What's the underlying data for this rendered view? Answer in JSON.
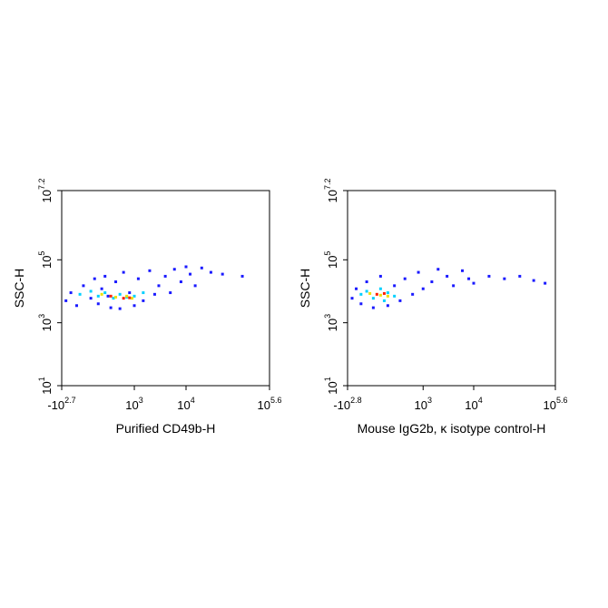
{
  "chart_data": [
    {
      "type": "scatter",
      "xlabel": "Purified CD49b-H",
      "ylabel": "SSC-H",
      "xscale": "biexponential",
      "yscale": "log",
      "xlim": [
        -501,
        398107
      ],
      "ylim": [
        10,
        15848932
      ],
      "xticks": [
        {
          "value": -501,
          "label": "-10",
          "exponent": "2.7"
        },
        {
          "value": 1000,
          "label": "10",
          "exponent": "3"
        },
        {
          "value": 10000,
          "label": "10",
          "exponent": "4"
        },
        {
          "value": 398107,
          "label": "10",
          "exponent": "5.6"
        }
      ],
      "yticks": [
        {
          "value": 10,
          "label": "10",
          "exponent": "1"
        },
        {
          "value": 1000,
          "label": "10",
          "exponent": "3"
        },
        {
          "value": 100000,
          "label": "10",
          "exponent": "5"
        },
        {
          "value": 15848932,
          "label": "10",
          "exponent": "7.2"
        }
      ],
      "series": [
        {
          "color": "#1a1aff",
          "x": [
            -400,
            -300,
            -200,
            -100,
            0,
            50,
            100,
            150,
            200,
            250,
            300,
            400,
            500,
            600,
            800,
            1000,
            1200,
            1500,
            2000,
            2500,
            3000,
            4000,
            5000,
            6000,
            8000,
            10000,
            12000,
            15000,
            20000,
            30000,
            50000,
            120000
          ],
          "y": [
            5000,
            9000,
            3500,
            15000,
            6000,
            25000,
            4000,
            12000,
            30000,
            7000,
            3000,
            20000,
            2800,
            40000,
            9000,
            3500,
            25000,
            5000,
            45000,
            8000,
            15000,
            30000,
            9000,
            50000,
            20000,
            60000,
            35000,
            15000,
            55000,
            40000,
            35000,
            30000
          ]
        },
        {
          "color": "#00d0ff",
          "x": [
            -150,
            0,
            100,
            200,
            350,
            500,
            700,
            1000,
            1500
          ],
          "y": [
            8000,
            10000,
            7000,
            9000,
            6000,
            8000,
            6500,
            7000,
            9000
          ]
        },
        {
          "color": "#f0e000",
          "x": [
            150,
            400,
            700,
            900
          ],
          "y": [
            8000,
            6500,
            7000,
            6000
          ]
        },
        {
          "color": "#ff2000",
          "x": [
            300,
            600,
            800
          ],
          "y": [
            7000,
            6000,
            6200
          ]
        }
      ]
    },
    {
      "type": "scatter",
      "xlabel": "Mouse IgG2b, κ isotype control-H",
      "ylabel": "SSC-H",
      "xscale": "biexponential",
      "yscale": "log",
      "xlim": [
        -631,
        398107
      ],
      "ylim": [
        10,
        15848932
      ],
      "xticks": [
        {
          "value": -631,
          "label": "-10",
          "exponent": "2.8"
        },
        {
          "value": 1000,
          "label": "10",
          "exponent": "3"
        },
        {
          "value": 10000,
          "label": "10",
          "exponent": "4"
        },
        {
          "value": 398107,
          "label": "10",
          "exponent": "5.6"
        }
      ],
      "yticks": [
        {
          "value": 10,
          "label": "10",
          "exponent": "1"
        },
        {
          "value": 1000,
          "label": "10",
          "exponent": "3"
        },
        {
          "value": 100000,
          "label": "10",
          "exponent": "5"
        },
        {
          "value": 15848932,
          "label": "10",
          "exponent": "7.2"
        }
      ],
      "series": [
        {
          "color": "#1a1aff",
          "x": [
            -500,
            -400,
            -300,
            -200,
            -100,
            0,
            100,
            200,
            300,
            400,
            600,
            800,
            1000,
            1500,
            2000,
            3000,
            4000,
            6000,
            8000,
            10000,
            20000,
            40000,
            80000,
            150000,
            250000
          ],
          "y": [
            6000,
            12000,
            4000,
            20000,
            3000,
            30000,
            3500,
            15000,
            5000,
            25000,
            8000,
            40000,
            12000,
            20000,
            50000,
            30000,
            15000,
            45000,
            25000,
            18000,
            30000,
            25000,
            30000,
            22000,
            18000
          ]
        },
        {
          "color": "#00d0ff",
          "x": [
            -300,
            -200,
            -100,
            0,
            100,
            200,
            50
          ],
          "y": [
            8000,
            10000,
            6000,
            12000,
            9000,
            7000,
            5000
          ]
        },
        {
          "color": "#f0e000",
          "x": [
            -150,
            0,
            100
          ],
          "y": [
            8500,
            7500,
            7000
          ]
        },
        {
          "color": "#ff2000",
          "x": [
            -50,
            50
          ],
          "y": [
            8000,
            8500
          ]
        }
      ]
    }
  ]
}
